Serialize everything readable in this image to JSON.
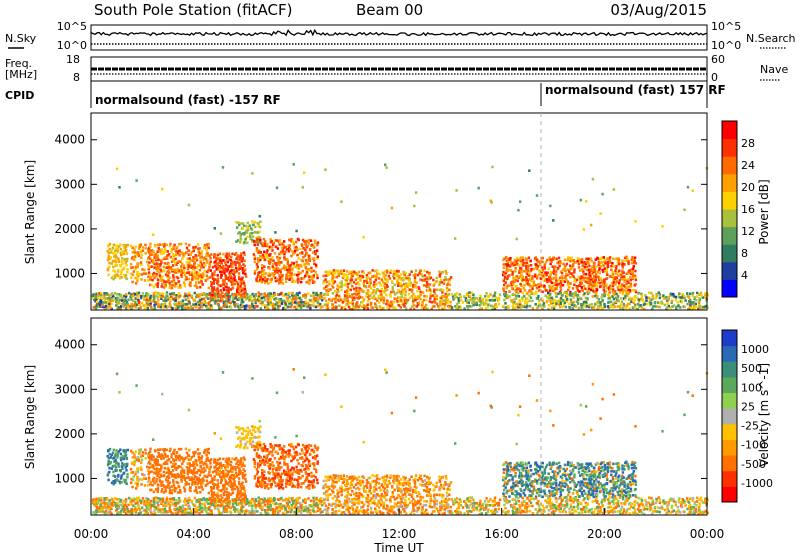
{
  "header": {
    "station": "South Pole Station (fitACF)",
    "beam": "Beam 00",
    "date": "03/Aug/2015"
  },
  "left_labels": {
    "nsky": "N.Sky",
    "freq_line1": "Freq.",
    "freq_line2": "[MHz]",
    "cpid": "CPID"
  },
  "right_labels": {
    "nsearch": "N.Search",
    "nave": "Nave"
  },
  "top_axes": {
    "noise_tick_hi": "10^5",
    "noise_tick_lo": "10^0",
    "freq_tick_hi": "18",
    "freq_tick_lo": "8",
    "nave_tick_hi": "60",
    "nave_tick_lo": "0"
  },
  "cpid_segments": [
    {
      "label": "normalsound (fast) -157 RF",
      "start_hour": 0
    },
    {
      "label": "normalsound (fast) 157 RF",
      "start_hour": 18
    }
  ],
  "chart_data": [
    {
      "type": "heatmap",
      "name": "power",
      "ylabel": "Slant Range [km]",
      "xlabel": "",
      "x_range_hours": [
        0,
        24
      ],
      "y_range_km": [
        180,
        4600
      ],
      "yticks": [
        1000,
        2000,
        3000,
        4000
      ],
      "colorbar": {
        "label": "Power [dB]",
        "ticks": [
          "4",
          "8",
          "12",
          "16",
          "20",
          "24",
          "28"
        ],
        "colors": [
          "#0000ff",
          "#1e3fa0",
          "#2f7d5e",
          "#5ca05c",
          "#a8c03c",
          "#ffd000",
          "#ffa000",
          "#ff6a00",
          "#ff3000",
          "#ff0000"
        ]
      }
    },
    {
      "type": "heatmap",
      "name": "velocity",
      "ylabel": "Slant Range [km]",
      "xlabel": "Time UT",
      "x_range_hours": [
        0,
        24
      ],
      "y_range_km": [
        180,
        4600
      ],
      "yticks": [
        1000,
        2000,
        3000,
        4000
      ],
      "xticks": [
        "00:00",
        "04:00",
        "08:00",
        "12:00",
        "16:00",
        "20:00",
        "00:00"
      ],
      "colorbar": {
        "label": "Velocity [m s^-1]",
        "ticks": [
          "1000",
          "500",
          "100",
          "25",
          "-25",
          "-100",
          "-500",
          "-1000"
        ],
        "colors": [
          "#1e3cc8",
          "#2a6ab4",
          "#3a8f7a",
          "#5aa85a",
          "#8fd050",
          "#b0b0b0",
          "#ffc000",
          "#ff9a00",
          "#ff7000",
          "#ff3000",
          "#ff0000"
        ]
      }
    }
  ],
  "scatter_regions": [
    {
      "t0": 0.0,
      "t1": 9.0,
      "r0": 200,
      "r1": 600,
      "density": 0.75,
      "pow": [
        4,
        26
      ],
      "vel": [
        -200,
        200
      ]
    },
    {
      "t0": 0.6,
      "t1": 1.4,
      "r0": 900,
      "r1": 1700,
      "density": 0.6,
      "pow": [
        14,
        22
      ],
      "vel": [
        100,
        800
      ]
    },
    {
      "t0": 1.5,
      "t1": 2.2,
      "r0": 800,
      "r1": 1700,
      "density": 0.45,
      "pow": [
        16,
        26
      ],
      "vel": [
        -200,
        100
      ]
    },
    {
      "t0": 2.2,
      "t1": 4.6,
      "r0": 700,
      "r1": 1700,
      "density": 0.55,
      "pow": [
        18,
        28
      ],
      "vel": [
        -300,
        -80
      ]
    },
    {
      "t0": 4.6,
      "t1": 6.0,
      "r0": 500,
      "r1": 1500,
      "density": 0.7,
      "pow": [
        22,
        30
      ],
      "vel": [
        -300,
        -80
      ]
    },
    {
      "t0": 5.6,
      "t1": 6.6,
      "r0": 1700,
      "r1": 2200,
      "density": 0.5,
      "pow": [
        10,
        18
      ],
      "vel": [
        -30,
        30
      ]
    },
    {
      "t0": 6.3,
      "t1": 8.8,
      "r0": 800,
      "r1": 1800,
      "density": 0.6,
      "pow": [
        18,
        30
      ],
      "vel": [
        -400,
        -80
      ]
    },
    {
      "t0": 9.0,
      "t1": 14.0,
      "r0": 200,
      "r1": 1100,
      "density": 0.55,
      "pow": [
        14,
        28
      ],
      "vel": [
        -200,
        50
      ]
    },
    {
      "t0": 14.0,
      "t1": 16.0,
      "r0": 200,
      "r1": 600,
      "density": 0.55,
      "pow": [
        8,
        20
      ],
      "vel": [
        -150,
        150
      ]
    },
    {
      "t0": 16.0,
      "t1": 21.2,
      "r0": 600,
      "r1": 1400,
      "density": 0.6,
      "pow": [
        18,
        30
      ],
      "vel": [
        -200,
        800
      ]
    },
    {
      "t0": 16.0,
      "t1": 24.0,
      "r0": 200,
      "r1": 600,
      "density": 0.55,
      "pow": [
        6,
        22
      ],
      "vel": [
        -150,
        150
      ]
    },
    {
      "t0": 0.0,
      "t1": 24.0,
      "r0": 1800,
      "r1": 3500,
      "density": 0.005,
      "pow": [
        6,
        20
      ],
      "vel": [
        -200,
        200
      ]
    }
  ]
}
